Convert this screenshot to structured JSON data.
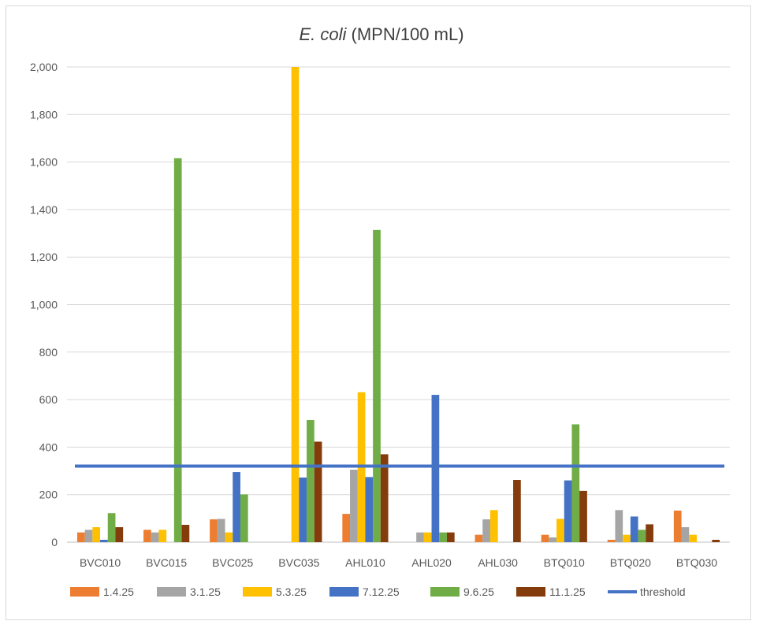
{
  "chart_data": {
    "type": "bar",
    "title_italic": "E. coli",
    "title_rest": " (MPN/100 mL)",
    "categories": [
      "BVC010",
      "BVC015",
      "BVC025",
      "BVC035",
      "AHL010",
      "AHL020",
      "AHL030",
      "BTQ010",
      "BTQ020",
      "BTQ030"
    ],
    "ylim": [
      0,
      2000
    ],
    "yticks": [
      0,
      200,
      400,
      600,
      800,
      1000,
      1200,
      1400,
      1600,
      1800,
      2000
    ],
    "ytick_labels": [
      "0",
      "200",
      "400",
      "600",
      "800",
      "1,000",
      "1,200",
      "1,400",
      "1,600",
      "1,800",
      "2,000"
    ],
    "grid": true,
    "legend_position": "bottom",
    "series": [
      {
        "name": "1.4.25",
        "color": "#ED7D31",
        "values": [
          41,
          52,
          96,
          0,
          119,
          0,
          31,
          31,
          10,
          133
        ]
      },
      {
        "name": "3.1.25",
        "color": "#A5A5A5",
        "values": [
          52,
          41,
          98,
          0,
          305,
          41,
          96,
          20,
          135,
          63
        ]
      },
      {
        "name": "5.3.25",
        "color": "#FFC000",
        "values": [
          63,
          52,
          41,
          2000,
          631,
          41,
          135,
          98,
          31,
          31
        ]
      },
      {
        "name": "7.12.25",
        "color": "#4472C4",
        "values": [
          10,
          0,
          295,
          272,
          274,
          620,
          0,
          260,
          108,
          0
        ]
      },
      {
        "name": "9.6.25",
        "color": "#70AD47",
        "values": [
          122,
          1616,
          201,
          514,
          1314,
          41,
          0,
          496,
          52,
          0
        ]
      },
      {
        "name": "11.1.25",
        "color": "#843C0C",
        "values": [
          63,
          73,
          0,
          423,
          370,
          41,
          262,
          216,
          75,
          10
        ]
      }
    ],
    "threshold": {
      "name": "threshold",
      "color": "#4472C4",
      "value": 320
    }
  }
}
